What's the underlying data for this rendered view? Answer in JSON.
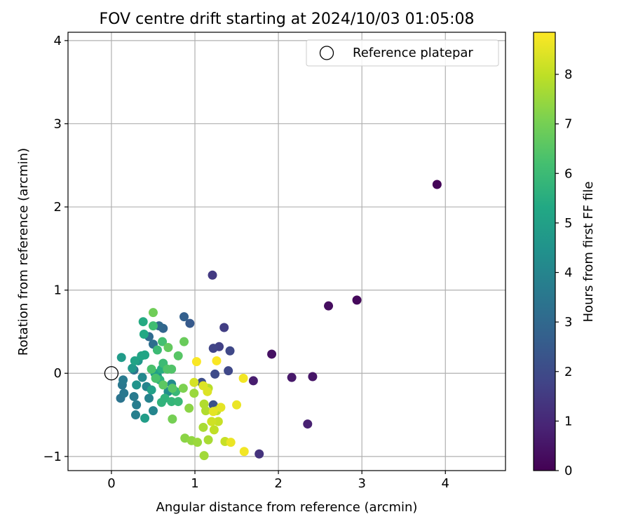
{
  "chart_data": {
    "type": "scatter",
    "title": "FOV centre drift starting at 2024/10/03 01:05:08",
    "xlabel": "Angular distance from reference (arcmin)",
    "ylabel": "Rotation from reference (arcmin)",
    "xlim": [
      -0.52,
      4.72
    ],
    "ylim": [
      -1.17,
      4.1
    ],
    "xticks": [
      0,
      1,
      2,
      3,
      4
    ],
    "yticks": [
      -1,
      0,
      1,
      2,
      3,
      4
    ],
    "xtick_labels": [
      "0",
      "1",
      "2",
      "3",
      "4"
    ],
    "ytick_labels": [
      "−1",
      "0",
      "1",
      "2",
      "3",
      "4"
    ],
    "grid": true,
    "legend": {
      "location": "top-right",
      "label": "Reference platepar"
    },
    "reference_point": {
      "x": 0,
      "y": 0
    },
    "colorbar": {
      "label": "Hours from first FF file",
      "min": 0,
      "max": 8.85,
      "colormap": "viridis",
      "ticks": [
        0,
        1,
        2,
        3,
        4,
        5,
        6,
        7,
        8
      ],
      "tick_labels": [
        "0",
        "1",
        "2",
        "3",
        "4",
        "5",
        "6",
        "7",
        "8"
      ]
    },
    "points": [
      {
        "x": 3.9,
        "y": 2.27,
        "c": 0.1
      },
      {
        "x": 2.94,
        "y": 0.88,
        "c": 0.2
      },
      {
        "x": 2.6,
        "y": 0.81,
        "c": 0.3
      },
      {
        "x": 1.92,
        "y": 0.23,
        "c": 0.4
      },
      {
        "x": 2.41,
        "y": -0.04,
        "c": 0.5
      },
      {
        "x": 2.16,
        "y": -0.05,
        "c": 0.6
      },
      {
        "x": 1.7,
        "y": -0.09,
        "c": 0.7
      },
      {
        "x": 2.35,
        "y": -0.61,
        "c": 0.8
      },
      {
        "x": 1.77,
        "y": -0.97,
        "c": 1.3
      },
      {
        "x": 1.21,
        "y": 1.18,
        "c": 1.5
      },
      {
        "x": 1.35,
        "y": 0.55,
        "c": 1.6
      },
      {
        "x": 1.29,
        "y": 0.32,
        "c": 1.7
      },
      {
        "x": 1.22,
        "y": 0.3,
        "c": 1.8
      },
      {
        "x": 1.42,
        "y": 0.27,
        "c": 1.9
      },
      {
        "x": 1.4,
        "y": 0.03,
        "c": 1.9
      },
      {
        "x": 1.24,
        "y": -0.01,
        "c": 2.0
      },
      {
        "x": 1.08,
        "y": -0.11,
        "c": 2.1
      },
      {
        "x": 1.22,
        "y": -0.38,
        "c": 2.2
      },
      {
        "x": 0.94,
        "y": 0.6,
        "c": 2.5
      },
      {
        "x": 0.87,
        "y": 0.68,
        "c": 2.7
      },
      {
        "x": 0.62,
        "y": 0.54,
        "c": 2.9
      },
      {
        "x": 0.57,
        "y": 0.57,
        "c": 3.0
      },
      {
        "x": 0.45,
        "y": 0.44,
        "c": 3.1
      },
      {
        "x": 0.5,
        "y": 0.35,
        "c": 3.2
      },
      {
        "x": 0.27,
        "y": 0.04,
        "c": 3.3
      },
      {
        "x": 0.11,
        "y": -0.3,
        "c": 3.4
      },
      {
        "x": 0.15,
        "y": -0.24,
        "c": 3.5
      },
      {
        "x": 0.13,
        "y": -0.14,
        "c": 3.5
      },
      {
        "x": 0.14,
        "y": -0.08,
        "c": 3.6
      },
      {
        "x": 0.27,
        "y": -0.28,
        "c": 3.6
      },
      {
        "x": 0.3,
        "y": -0.38,
        "c": 3.7
      },
      {
        "x": 0.29,
        "y": -0.5,
        "c": 3.8
      },
      {
        "x": 0.45,
        "y": -0.3,
        "c": 3.9
      },
      {
        "x": 0.5,
        "y": -0.45,
        "c": 4.0
      },
      {
        "x": 0.42,
        "y": -0.16,
        "c": 4.0
      },
      {
        "x": 0.37,
        "y": -0.05,
        "c": 4.1
      },
      {
        "x": 0.72,
        "y": -0.13,
        "c": 4.2
      },
      {
        "x": 0.68,
        "y": -0.22,
        "c": 4.3
      },
      {
        "x": 0.55,
        "y": -0.03,
        "c": 4.4
      },
      {
        "x": 0.3,
        "y": -0.14,
        "c": 4.5
      },
      {
        "x": 0.32,
        "y": 0.15,
        "c": 4.6
      },
      {
        "x": 0.25,
        "y": 0.06,
        "c": 4.7
      },
      {
        "x": 0.12,
        "y": 0.19,
        "c": 4.8
      },
      {
        "x": 0.4,
        "y": -0.54,
        "c": 4.9
      },
      {
        "x": 0.48,
        "y": -0.2,
        "c": 5.0
      },
      {
        "x": 0.52,
        "y": 0.0,
        "c": 5.0
      },
      {
        "x": 0.28,
        "y": 0.15,
        "c": 5.1
      },
      {
        "x": 0.36,
        "y": 0.21,
        "c": 5.2
      },
      {
        "x": 0.4,
        "y": 0.22,
        "c": 5.2
      },
      {
        "x": 0.39,
        "y": 0.47,
        "c": 5.3
      },
      {
        "x": 0.38,
        "y": 0.62,
        "c": 5.4
      },
      {
        "x": 0.6,
        "y": 0.05,
        "c": 5.5
      },
      {
        "x": 0.58,
        "y": -0.08,
        "c": 5.6
      },
      {
        "x": 0.64,
        "y": -0.3,
        "c": 5.7
      },
      {
        "x": 0.6,
        "y": -0.35,
        "c": 5.7
      },
      {
        "x": 0.72,
        "y": -0.34,
        "c": 5.8
      },
      {
        "x": 0.8,
        "y": -0.34,
        "c": 5.9
      },
      {
        "x": 0.77,
        "y": -0.22,
        "c": 5.9
      },
      {
        "x": 0.62,
        "y": 0.12,
        "c": 6.0
      },
      {
        "x": 0.55,
        "y": 0.28,
        "c": 6.0
      },
      {
        "x": 0.5,
        "y": 0.57,
        "c": 6.1
      },
      {
        "x": 0.61,
        "y": 0.38,
        "c": 6.2
      },
      {
        "x": 0.48,
        "y": 0.05,
        "c": 6.3
      },
      {
        "x": 0.53,
        "y": -0.06,
        "c": 6.3
      },
      {
        "x": 0.67,
        "y": 0.05,
        "c": 6.4
      },
      {
        "x": 0.72,
        "y": 0.05,
        "c": 6.4
      },
      {
        "x": 0.73,
        "y": -0.18,
        "c": 6.5
      },
      {
        "x": 0.8,
        "y": 0.21,
        "c": 6.5
      },
      {
        "x": 0.62,
        "y": -0.14,
        "c": 6.6
      },
      {
        "x": 0.68,
        "y": 0.31,
        "c": 6.7
      },
      {
        "x": 0.87,
        "y": 0.38,
        "c": 6.8
      },
      {
        "x": 0.5,
        "y": 0.73,
        "c": 6.9
      },
      {
        "x": 0.73,
        "y": -0.55,
        "c": 7.0
      },
      {
        "x": 0.86,
        "y": -0.18,
        "c": 7.1
      },
      {
        "x": 0.88,
        "y": -0.78,
        "c": 7.3
      },
      {
        "x": 0.93,
        "y": -0.42,
        "c": 7.3
      },
      {
        "x": 0.96,
        "y": -0.81,
        "c": 7.4
      },
      {
        "x": 0.99,
        "y": -0.24,
        "c": 7.5
      },
      {
        "x": 1.03,
        "y": -0.83,
        "c": 7.5
      },
      {
        "x": 1.11,
        "y": -0.99,
        "c": 7.6
      },
      {
        "x": 1.1,
        "y": -0.65,
        "c": 7.7
      },
      {
        "x": 1.16,
        "y": -0.8,
        "c": 7.7
      },
      {
        "x": 1.11,
        "y": -0.37,
        "c": 7.8
      },
      {
        "x": 1.13,
        "y": -0.45,
        "c": 7.8
      },
      {
        "x": 1.16,
        "y": -0.18,
        "c": 7.9
      },
      {
        "x": 1.23,
        "y": -0.68,
        "c": 8.0
      },
      {
        "x": 1.26,
        "y": -0.45,
        "c": 8.0
      },
      {
        "x": 1.28,
        "y": -0.58,
        "c": 8.1
      },
      {
        "x": 1.36,
        "y": -0.82,
        "c": 8.1
      },
      {
        "x": 1.2,
        "y": -0.58,
        "c": 8.2
      },
      {
        "x": 0.99,
        "y": -0.11,
        "c": 8.3
      },
      {
        "x": 1.1,
        "y": -0.15,
        "c": 8.4
      },
      {
        "x": 1.15,
        "y": -0.22,
        "c": 8.4
      },
      {
        "x": 1.22,
        "y": -0.46,
        "c": 8.5
      },
      {
        "x": 1.31,
        "y": -0.41,
        "c": 8.5
      },
      {
        "x": 1.5,
        "y": -0.38,
        "c": 8.6
      },
      {
        "x": 1.43,
        "y": -0.83,
        "c": 8.6
      },
      {
        "x": 1.59,
        "y": -0.94,
        "c": 8.7
      },
      {
        "x": 1.58,
        "y": -0.06,
        "c": 8.7
      },
      {
        "x": 1.02,
        "y": 0.14,
        "c": 8.8
      },
      {
        "x": 1.26,
        "y": 0.15,
        "c": 8.8
      }
    ]
  }
}
